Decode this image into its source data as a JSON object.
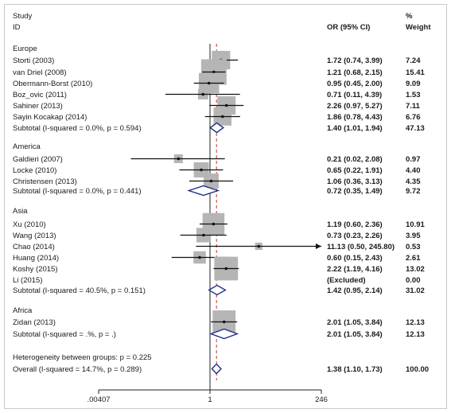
{
  "chart_data": {
    "type": "forest",
    "headers": {
      "study": "Study",
      "id": "ID",
      "or_ci": "OR (95% CI)",
      "pct": "%",
      "weight": "Weight"
    },
    "x_axis": {
      "scale": "log",
      "ticks": [
        {
          "value": 0.00407,
          "label": ".00407"
        },
        {
          "value": 1,
          "label": "1"
        },
        {
          "value": 246,
          "label": "246"
        }
      ],
      "null_line": 1,
      "overall_line": 1.38
    },
    "colors": {
      "box": "#b5b5b5",
      "diamond": "#1f2f8a",
      "overall_line": "#c0392b",
      "text": "#1a1a1a",
      "frame": "#c9c9c9"
    },
    "groups": [
      {
        "name": "Europe",
        "studies": [
          {
            "label": "Storti (2003)",
            "or": 1.72,
            "lo": 0.74,
            "hi": 3.99,
            "text": "1.72 (0.74, 3.99)",
            "weight": "7.24",
            "w": 7.24
          },
          {
            "label": "van Driel (2008)",
            "or": 1.21,
            "lo": 0.68,
            "hi": 2.15,
            "text": "1.21 (0.68, 2.15)",
            "weight": "15.41",
            "w": 15.41
          },
          {
            "label": "Obermann-Borst (2010)",
            "or": 0.95,
            "lo": 0.45,
            "hi": 2.0,
            "text": "0.95 (0.45, 2.00)",
            "weight": "9.09",
            "w": 9.09
          },
          {
            "label": "Boz_ovic  (2011)",
            "or": 0.71,
            "lo": 0.11,
            "hi": 4.39,
            "text": "0.71 (0.11, 4.39)",
            "weight": "1.53",
            "w": 1.53
          },
          {
            "label": "Sahiner (2013)",
            "or": 2.26,
            "lo": 0.97,
            "hi": 5.27,
            "text": "2.26 (0.97, 5.27)",
            "weight": "7.11",
            "w": 7.11
          },
          {
            "label": "Sayin Kocakap (2014)",
            "or": 1.86,
            "lo": 0.78,
            "hi": 4.43,
            "text": "1.86 (0.78, 4.43)",
            "weight": "6.76",
            "w": 6.76
          }
        ],
        "subtotal": {
          "label": "Subtotal  (I-squared = 0.0%, p = 0.594)",
          "or": 1.4,
          "lo": 1.01,
          "hi": 1.94,
          "text": "1.40 (1.01, 1.94)",
          "weight": "47.13"
        }
      },
      {
        "name": "America",
        "studies": [
          {
            "label": "Galdieri (2007)",
            "or": 0.21,
            "lo": 0.02,
            "hi": 2.08,
            "text": "0.21 (0.02, 2.08)",
            "weight": "0.97",
            "w": 0.97
          },
          {
            "label": "Locke (2010)",
            "or": 0.65,
            "lo": 0.22,
            "hi": 1.91,
            "text": "0.65 (0.22, 1.91)",
            "weight": "4.40",
            "w": 4.4
          },
          {
            "label": "Christensen (2013)",
            "or": 1.06,
            "lo": 0.36,
            "hi": 3.13,
            "text": "1.06 (0.36, 3.13)",
            "weight": "4.35",
            "w": 4.35
          }
        ],
        "subtotal": {
          "label": "Subtotal  (I-squared = 0.0%, p = 0.441)",
          "or": 0.72,
          "lo": 0.35,
          "hi": 1.49,
          "text": "0.72 (0.35, 1.49)",
          "weight": "9.72"
        }
      },
      {
        "name": "Asia",
        "studies": [
          {
            "label": "Xu (2010)",
            "or": 1.19,
            "lo": 0.6,
            "hi": 2.36,
            "text": "1.19 (0.60, 2.36)",
            "weight": "10.91",
            "w": 10.91
          },
          {
            "label": "Wang (2013)",
            "or": 0.73,
            "lo": 0.23,
            "hi": 2.26,
            "text": "0.73 (0.23, 2.26)",
            "weight": "3.95",
            "w": 3.95
          },
          {
            "label": "Chao (2014)",
            "or": 11.13,
            "lo": 0.5,
            "hi": 245.8,
            "text": "11.13 (0.50, 245.80)",
            "weight": "0.53",
            "w": 0.53
          },
          {
            "label": "Huang (2014)",
            "or": 0.6,
            "lo": 0.15,
            "hi": 2.43,
            "text": "0.60 (0.15, 2.43)",
            "weight": "2.61",
            "w": 2.61
          },
          {
            "label": "Koshy (2015)",
            "or": 2.22,
            "lo": 1.19,
            "hi": 4.16,
            "text": "2.22 (1.19, 4.16)",
            "weight": "13.02",
            "w": 13.02
          },
          {
            "label": "Li (2015)",
            "or": null,
            "lo": null,
            "hi": null,
            "text": "(Excluded)",
            "weight": "0.00",
            "w": 0
          }
        ],
        "subtotal": {
          "label": "Subtotal  (I-squared = 40.5%, p = 0.151)",
          "or": 1.42,
          "lo": 0.95,
          "hi": 2.14,
          "text": "1.42 (0.95, 2.14)",
          "weight": "31.02"
        }
      },
      {
        "name": "Africa",
        "studies": [
          {
            "label": "Zidan (2013)",
            "or": 2.01,
            "lo": 1.05,
            "hi": 3.84,
            "text": "2.01 (1.05, 3.84)",
            "weight": "12.13",
            "w": 12.13
          }
        ],
        "subtotal": {
          "label": "Subtotal  (I-squared = .%, p = .)",
          "or": 2.01,
          "lo": 1.05,
          "hi": 3.84,
          "text": "2.01 (1.05, 3.84)",
          "weight": "12.13"
        }
      }
    ],
    "heterogeneity": "Heterogeneity between groups: p = 0.225",
    "overall": {
      "label": "Overall  (I-squared = 14.7%, p = 0.289)",
      "or": 1.38,
      "lo": 1.1,
      "hi": 1.73,
      "text": "1.38 (1.10, 1.73)",
      "weight": "100.00"
    }
  }
}
